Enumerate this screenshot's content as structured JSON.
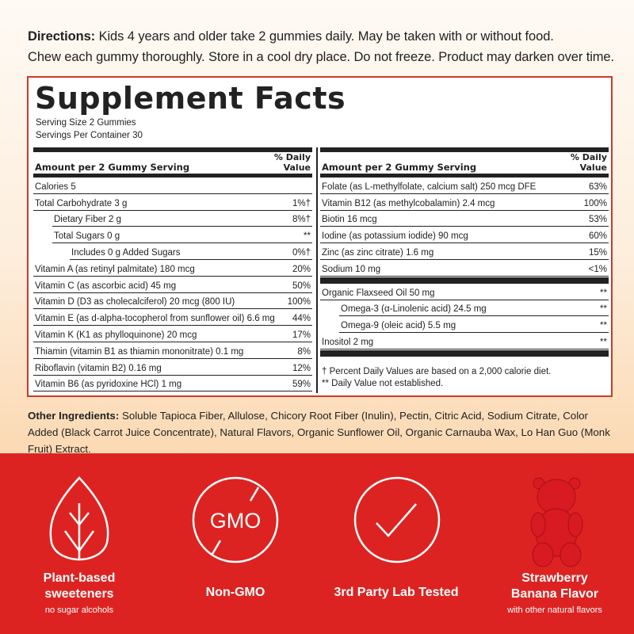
{
  "directions": {
    "label": "Directions:",
    "line1": " Kids 4 years and older take 2 gummies daily. May be taken with or without food.",
    "line2": "Chew each gummy thoroughly. Store in a cool dry place. Do not freeze. Product may darken over time."
  },
  "facts": {
    "title": "Supplement Facts",
    "serving_size": "Serving Size 2 Gummies",
    "servings_per_container": "Servings Per Container 30",
    "amount_header": "Amount per 2 Gummy Serving",
    "dv_header_1": "% Daily",
    "dv_header_2": "Value",
    "left_rows": [
      {
        "name": "Calories 5",
        "dv": "",
        "indent": 0
      },
      {
        "name": "Total Carbohydrate 3 g",
        "dv": "1%†",
        "indent": 0
      },
      {
        "name": "Dietary Fiber 2 g",
        "dv": "8%†",
        "indent": 1
      },
      {
        "name": "Total Sugars 0 g",
        "dv": "**",
        "indent": 1
      },
      {
        "name": "Includes 0 g Added Sugars",
        "dv": "0%†",
        "indent": 2
      },
      {
        "name": "Vitamin A (as retinyl palmitate) 180 mcg",
        "dv": "20%",
        "indent": 0
      },
      {
        "name": "Vitamin C (as ascorbic acid) 45 mg",
        "dv": "50%",
        "indent": 0
      },
      {
        "name": "Vitamin D (D3 as cholecalciferol) 20 mcg (800 IU)",
        "dv": "100%",
        "indent": 0
      },
      {
        "name": "Vitamin E (as d-alpha-tocopherol from sunflower oil) 6.6 mg",
        "dv": "44%",
        "indent": 0
      },
      {
        "name": "Vitamin K (K1 as phylloquinone) 20 mcg",
        "dv": "17%",
        "indent": 0
      },
      {
        "name": "Thiamin (vitamin B1 as thiamin mononitrate) 0.1 mg",
        "dv": "8%",
        "indent": 0
      },
      {
        "name": "Riboflavin (vitamin B2) 0.16 mg",
        "dv": "12%",
        "indent": 0
      },
      {
        "name": "Vitamin B6 (as pyridoxine HCl) 1 mg",
        "dv": "59%",
        "indent": 0
      }
    ],
    "right_rows_a": [
      {
        "name": "Folate (as L-methylfolate, calcium salt) 250 mcg DFE",
        "dv": "63%",
        "indent": 0
      },
      {
        "name": "Vitamin B12 (as methylcobalamin) 2.4 mcg",
        "dv": "100%",
        "indent": 0
      },
      {
        "name": "Biotin 16 mcg",
        "dv": "53%",
        "indent": 0
      },
      {
        "name": "Iodine (as potassium iodide) 90 mcg",
        "dv": "60%",
        "indent": 0
      },
      {
        "name": "Zinc (as zinc citrate) 1.6 mg",
        "dv": "15%",
        "indent": 0
      },
      {
        "name": "Sodium 10 mg",
        "dv": "<1%",
        "indent": 0
      }
    ],
    "right_rows_b": [
      {
        "name": "Organic Flaxseed Oil 50 mg",
        "dv": "**",
        "indent": 0
      },
      {
        "name": "Omega-3 (α-Linolenic acid) 24.5 mg",
        "dv": "**",
        "indent": 1
      },
      {
        "name": "Omega-9 (oleic acid) 5.5 mg",
        "dv": "**",
        "indent": 1
      },
      {
        "name": "Inositol 2 mg",
        "dv": "**",
        "indent": 0
      }
    ],
    "footnote1": "† Percent Daily Values are based on a 2,000 calorie diet.",
    "footnote2": "** Daily Value not established."
  },
  "other_ingredients": {
    "label": "Other Ingredients:",
    "text": " Soluble Tapioca Fiber, Allulose, Chicory Root Fiber (Inulin), Pectin, Citric Acid, Sodium Citrate, Color Added (Black Carrot Juice Concentrate), Natural Flavors, Organic Sunflower Oil, Organic Carnauba Wax, Lo Han Guo (Monk Fruit) Extract."
  },
  "features": [
    {
      "icon": "leaf-icon",
      "line1": "Plant-based",
      "line2": "sweeteners",
      "sub": "no sugar alcohols"
    },
    {
      "icon": "no-gmo-icon",
      "icon_text": "GMO",
      "line1": "Non-GMO"
    },
    {
      "icon": "checkmark-circle-icon",
      "line1": "3rd Party Lab Tested"
    },
    {
      "icon": "gummy-bear-image",
      "line1": "Strawberry",
      "line2": "Banana Flavor",
      "sub": "with other natural flavors"
    }
  ],
  "colors": {
    "accent_red": "#dd2321",
    "panel_border": "#c93a2c"
  }
}
